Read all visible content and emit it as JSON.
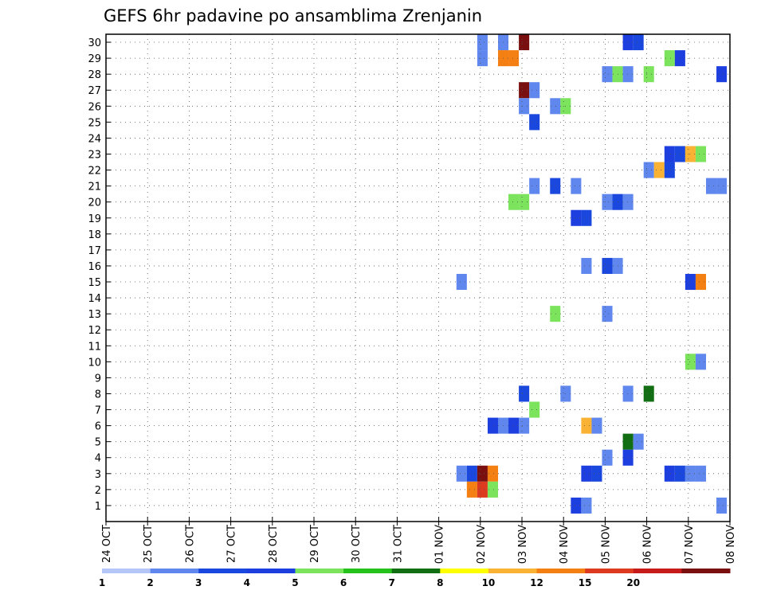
{
  "chart_data": {
    "type": "heatmap",
    "title": "GEFS 6hr padavine po ansamblima Zrenjanin",
    "x_tick_labels": [
      "24 OCT",
      "25 OCT",
      "26 OCT",
      "27 OCT",
      "28 OCT",
      "29 OCT",
      "30 OCT",
      "31 OCT",
      "01 NOV",
      "02 NOV",
      "03 NOV",
      "04 NOV",
      "05 NOV",
      "06 NOV",
      "07 NOV",
      "08 NOV"
    ],
    "y_tick_labels": [
      "1",
      "2",
      "3",
      "4",
      "5",
      "6",
      "7",
      "8",
      "9",
      "10",
      "11",
      "12",
      "13",
      "14",
      "15",
      "16",
      "17",
      "18",
      "19",
      "20",
      "21",
      "22",
      "23",
      "24",
      "25",
      "26",
      "27",
      "28",
      "29",
      "30"
    ],
    "x_axis": {
      "unit": "days since 24 OCT",
      "range": [
        0,
        15
      ]
    },
    "y_axis": {
      "label": "",
      "range": [
        1,
        30
      ]
    },
    "grid": true,
    "colorbar": {
      "tick_labels": [
        "1",
        "2",
        "3",
        "4",
        "5",
        "6",
        "7",
        "8",
        "10",
        "12",
        "15",
        "20"
      ],
      "colors": [
        "#b3c6f7",
        "#5f87ee",
        "#1a47dd",
        "#1d3fe0",
        "#7ce35d",
        "#24c21a",
        "#126e12",
        "#ffff00",
        "#f9b233",
        "#f47f13",
        "#dd3b1f",
        "#c71a1a",
        "#7a0f0f"
      ]
    },
    "cells": [
      {
        "m": 30,
        "d": 9.05,
        "l": 1
      },
      {
        "m": 30,
        "d": 9.55,
        "l": 1
      },
      {
        "m": 30,
        "d": 10.05,
        "l": 12
      },
      {
        "m": 30,
        "d": 12.55,
        "l": 3
      },
      {
        "m": 30,
        "d": 12.8,
        "l": 2
      },
      {
        "m": 29,
        "d": 9.05,
        "l": 1
      },
      {
        "m": 29,
        "d": 9.55,
        "l": 9
      },
      {
        "m": 29,
        "d": 9.8,
        "l": 9
      },
      {
        "m": 29,
        "d": 13.55,
        "l": 4
      },
      {
        "m": 29,
        "d": 13.8,
        "l": 3
      },
      {
        "m": 28,
        "d": 12.05,
        "l": 1
      },
      {
        "m": 28,
        "d": 12.3,
        "l": 4
      },
      {
        "m": 28,
        "d": 12.55,
        "l": 1
      },
      {
        "m": 28,
        "d": 13.05,
        "l": 4
      },
      {
        "m": 28,
        "d": 14.8,
        "l": 3
      },
      {
        "m": 27,
        "d": 10.05,
        "l": 12
      },
      {
        "m": 27,
        "d": 10.3,
        "l": 1
      },
      {
        "m": 26,
        "d": 10.05,
        "l": 1
      },
      {
        "m": 26,
        "d": 10.8,
        "l": 1
      },
      {
        "m": 26,
        "d": 11.05,
        "l": 4
      },
      {
        "m": 25,
        "d": 10.3,
        "l": 2
      },
      {
        "m": 23,
        "d": 13.55,
        "l": 3
      },
      {
        "m": 23,
        "d": 13.8,
        "l": 2
      },
      {
        "m": 23,
        "d": 14.05,
        "l": 8
      },
      {
        "m": 23,
        "d": 14.3,
        "l": 4
      },
      {
        "m": 22,
        "d": 13.05,
        "l": 1
      },
      {
        "m": 22,
        "d": 13.3,
        "l": 8
      },
      {
        "m": 22,
        "d": 13.55,
        "l": 2
      },
      {
        "m": 21,
        "d": 10.3,
        "l": 1
      },
      {
        "m": 21,
        "d": 10.8,
        "l": 2
      },
      {
        "m": 21,
        "d": 11.3,
        "l": 1
      },
      {
        "m": 21,
        "d": 14.55,
        "l": 1
      },
      {
        "m": 21,
        "d": 14.8,
        "l": 1
      },
      {
        "m": 20,
        "d": 9.8,
        "l": 4
      },
      {
        "m": 20,
        "d": 10.05,
        "l": 4
      },
      {
        "m": 20,
        "d": 12.05,
        "l": 1
      },
      {
        "m": 20,
        "d": 12.3,
        "l": 2
      },
      {
        "m": 20,
        "d": 12.55,
        "l": 1
      },
      {
        "m": 19,
        "d": 11.3,
        "l": 3
      },
      {
        "m": 19,
        "d": 11.55,
        "l": 2
      },
      {
        "m": 16,
        "d": 11.55,
        "l": 1
      },
      {
        "m": 16,
        "d": 12.05,
        "l": 2
      },
      {
        "m": 16,
        "d": 12.3,
        "l": 1
      },
      {
        "m": 15,
        "d": 8.55,
        "l": 1
      },
      {
        "m": 15,
        "d": 14.05,
        "l": 3
      },
      {
        "m": 15,
        "d": 14.3,
        "l": 9
      },
      {
        "m": 13,
        "d": 10.8,
        "l": 4
      },
      {
        "m": 13,
        "d": 12.05,
        "l": 1
      },
      {
        "m": 10,
        "d": 14.05,
        "l": 4
      },
      {
        "m": 10,
        "d": 14.3,
        "l": 1
      },
      {
        "m": 8,
        "d": 10.05,
        "l": 2
      },
      {
        "m": 8,
        "d": 11.05,
        "l": 1
      },
      {
        "m": 8,
        "d": 12.55,
        "l": 1
      },
      {
        "m": 8,
        "d": 13.05,
        "l": 6
      },
      {
        "m": 7,
        "d": 10.3,
        "l": 4
      },
      {
        "m": 6,
        "d": 9.3,
        "l": 3
      },
      {
        "m": 6,
        "d": 9.55,
        "l": 1
      },
      {
        "m": 6,
        "d": 9.8,
        "l": 3
      },
      {
        "m": 6,
        "d": 10.05,
        "l": 1
      },
      {
        "m": 6,
        "d": 11.55,
        "l": 8
      },
      {
        "m": 6,
        "d": 11.8,
        "l": 1
      },
      {
        "m": 5,
        "d": 12.55,
        "l": 6
      },
      {
        "m": 5,
        "d": 12.8,
        "l": 1
      },
      {
        "m": 4,
        "d": 12.05,
        "l": 1
      },
      {
        "m": 4,
        "d": 12.55,
        "l": 3
      },
      {
        "m": 3,
        "d": 8.55,
        "l": 1
      },
      {
        "m": 3,
        "d": 8.8,
        "l": 2
      },
      {
        "m": 3,
        "d": 9.05,
        "l": 12
      },
      {
        "m": 3,
        "d": 9.3,
        "l": 9
      },
      {
        "m": 3,
        "d": 11.55,
        "l": 3
      },
      {
        "m": 3,
        "d": 11.8,
        "l": 2
      },
      {
        "m": 3,
        "d": 13.55,
        "l": 3
      },
      {
        "m": 3,
        "d": 13.8,
        "l": 2
      },
      {
        "m": 3,
        "d": 14.05,
        "l": 1
      },
      {
        "m": 3,
        "d": 14.3,
        "l": 1
      },
      {
        "m": 2,
        "d": 8.8,
        "l": 9
      },
      {
        "m": 2,
        "d": 9.05,
        "l": 10
      },
      {
        "m": 2,
        "d": 9.3,
        "l": 4
      },
      {
        "m": 1,
        "d": 11.3,
        "l": 3
      },
      {
        "m": 1,
        "d": 11.55,
        "l": 1
      },
      {
        "m": 1,
        "d": 14.8,
        "l": 1
      }
    ]
  }
}
